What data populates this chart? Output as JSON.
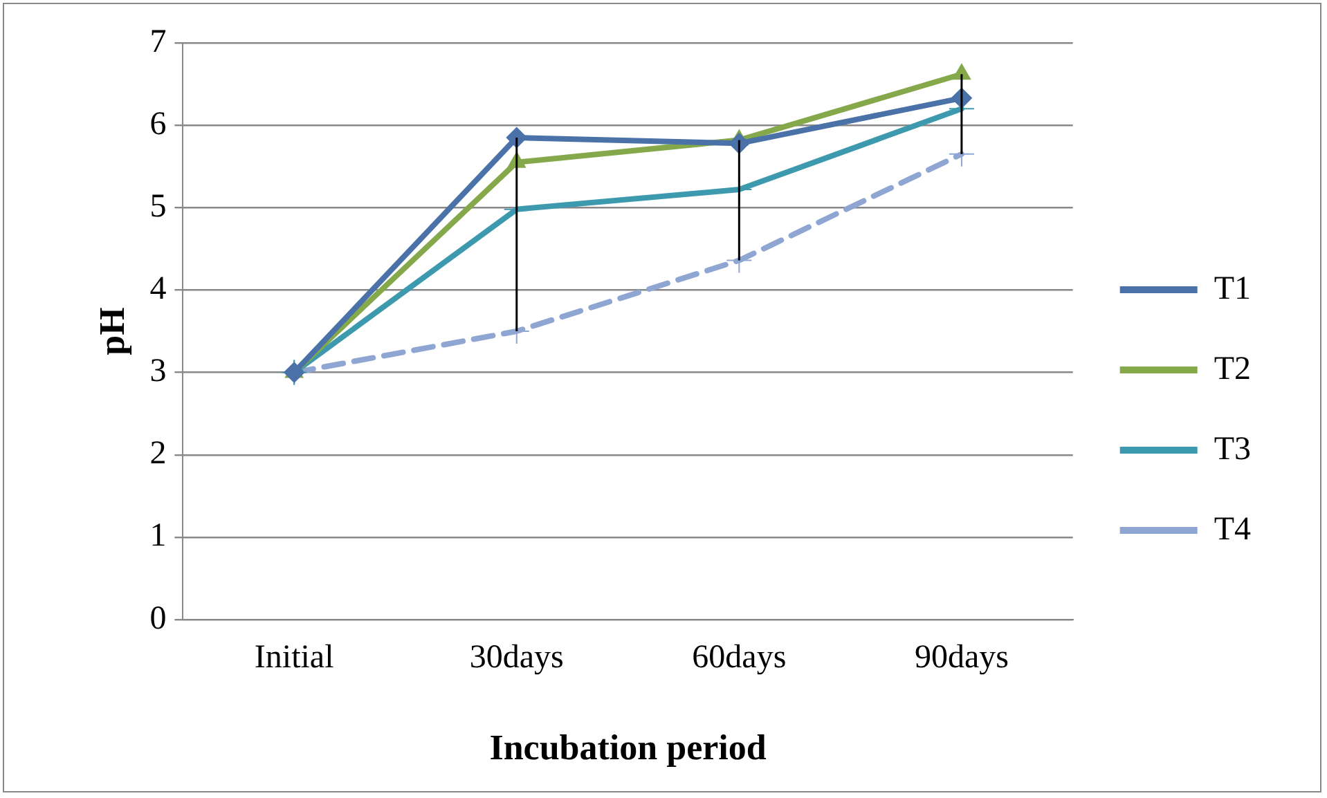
{
  "chart_data": {
    "type": "line",
    "xlabel": "Incubation period",
    "ylabel": "pH",
    "categories": [
      "Initial",
      "30days",
      "60days",
      "90days"
    ],
    "ylim": [
      0,
      7
    ],
    "yticks": [
      0,
      1,
      2,
      3,
      4,
      5,
      6,
      7
    ],
    "grid": "y",
    "legend": "right",
    "series": [
      {
        "name": "T1",
        "color": "#4a72a8",
        "values": [
          3.0,
          5.85,
          5.78,
          6.33
        ],
        "marker": "diamond",
        "line_style": "solid"
      },
      {
        "name": "T2",
        "color": "#84a84a",
        "values": [
          3.0,
          5.55,
          5.82,
          6.62
        ],
        "marker": "triangle",
        "line_style": "solid"
      },
      {
        "name": "T3",
        "color": "#3d9aae",
        "values": [
          3.0,
          4.98,
          5.22,
          6.2
        ],
        "marker": "cross",
        "line_style": "solid"
      },
      {
        "name": "T4",
        "color": "#8fa6d3",
        "values": [
          3.0,
          3.5,
          4.36,
          5.65
        ],
        "marker": "cross",
        "line_style": "dashed",
        "errors": [
          null,
          [
            3.5,
            5.85
          ],
          [
            4.36,
            5.82
          ],
          [
            5.65,
            6.62
          ]
        ]
      }
    ]
  }
}
